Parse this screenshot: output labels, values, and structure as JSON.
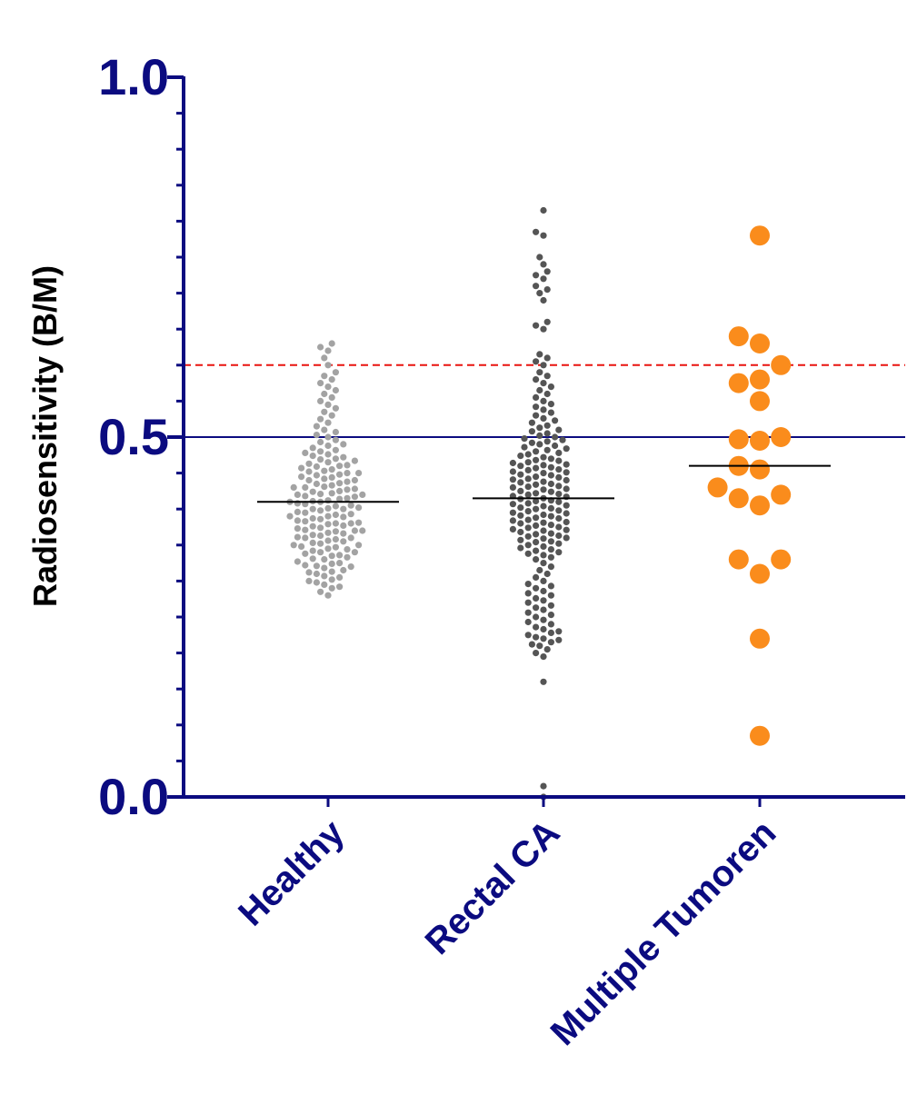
{
  "chart_data": {
    "type": "scatter",
    "subtype": "dot-plot with median lines",
    "ylabel": "Radiosensitivity (B/M)",
    "xlabel": "",
    "ylim": [
      0.0,
      1.0
    ],
    "y_ticks": [
      {
        "value": 0.0,
        "label": "0.0"
      },
      {
        "value": 0.5,
        "label": "0.5"
      },
      {
        "value": 1.0,
        "label": "1.0"
      }
    ],
    "grid": false,
    "legend": "none",
    "reference_lines": [
      {
        "value": 0.5,
        "style": "solid",
        "color": "#0b0b80"
      },
      {
        "value": 0.6,
        "style": "dashed",
        "color": "#e8130f"
      }
    ],
    "categories": [
      "Healthy",
      "Rectal CA",
      "Multiple Tumoren"
    ],
    "series": [
      {
        "category": "Healthy",
        "color": "#a3a3a3",
        "marker": "small",
        "median": 0.41,
        "values": [
          0.28,
          0.285,
          0.29,
          0.292,
          0.295,
          0.298,
          0.3,
          0.302,
          0.305,
          0.307,
          0.31,
          0.312,
          0.313,
          0.315,
          0.318,
          0.32,
          0.321,
          0.322,
          0.324,
          0.325,
          0.327,
          0.33,
          0.331,
          0.333,
          0.335,
          0.336,
          0.338,
          0.34,
          0.34,
          0.342,
          0.344,
          0.345,
          0.347,
          0.348,
          0.35,
          0.35,
          0.352,
          0.353,
          0.355,
          0.356,
          0.358,
          0.36,
          0.36,
          0.361,
          0.363,
          0.364,
          0.366,
          0.367,
          0.369,
          0.37,
          0.37,
          0.371,
          0.373,
          0.374,
          0.376,
          0.377,
          0.379,
          0.38,
          0.38,
          0.381,
          0.383,
          0.384,
          0.386,
          0.387,
          0.389,
          0.39,
          0.39,
          0.392,
          0.393,
          0.395,
          0.396,
          0.398,
          0.4,
          0.4,
          0.401,
          0.402,
          0.404,
          0.405,
          0.407,
          0.408,
          0.41,
          0.41,
          0.411,
          0.412,
          0.414,
          0.415,
          0.417,
          0.418,
          0.42,
          0.42,
          0.421,
          0.422,
          0.424,
          0.425,
          0.427,
          0.428,
          0.43,
          0.43,
          0.431,
          0.433,
          0.435,
          0.436,
          0.438,
          0.44,
          0.44,
          0.442,
          0.444,
          0.445,
          0.447,
          0.448,
          0.45,
          0.45,
          0.452,
          0.453,
          0.455,
          0.457,
          0.459,
          0.46,
          0.461,
          0.463,
          0.465,
          0.467,
          0.469,
          0.47,
          0.472,
          0.474,
          0.476,
          0.478,
          0.48,
          0.482,
          0.485,
          0.488,
          0.49,
          0.493,
          0.496,
          0.5,
          0.503,
          0.507,
          0.51,
          0.515,
          0.52,
          0.525,
          0.53,
          0.535,
          0.54,
          0.545,
          0.55,
          0.555,
          0.56,
          0.565,
          0.57,
          0.575,
          0.58,
          0.585,
          0.59,
          0.6,
          0.61,
          0.62,
          0.625,
          0.63
        ]
      },
      {
        "category": "Rectal CA",
        "color": "#555555",
        "marker": "small",
        "median": 0.415,
        "values": [
          0.0,
          0.015,
          0.16,
          0.195,
          0.2,
          0.205,
          0.21,
          0.212,
          0.215,
          0.218,
          0.22,
          0.222,
          0.225,
          0.228,
          0.23,
          0.233,
          0.236,
          0.24,
          0.243,
          0.246,
          0.25,
          0.253,
          0.256,
          0.26,
          0.263,
          0.266,
          0.27,
          0.273,
          0.276,
          0.28,
          0.283,
          0.286,
          0.29,
          0.293,
          0.296,
          0.3,
          0.305,
          0.31,
          0.315,
          0.32,
          0.325,
          0.33,
          0.333,
          0.336,
          0.338,
          0.34,
          0.342,
          0.344,
          0.346,
          0.348,
          0.35,
          0.352,
          0.354,
          0.355,
          0.357,
          0.359,
          0.36,
          0.362,
          0.363,
          0.365,
          0.366,
          0.368,
          0.37,
          0.371,
          0.372,
          0.374,
          0.375,
          0.377,
          0.378,
          0.38,
          0.381,
          0.382,
          0.384,
          0.385,
          0.387,
          0.388,
          0.39,
          0.391,
          0.392,
          0.394,
          0.395,
          0.397,
          0.398,
          0.4,
          0.401,
          0.402,
          0.404,
          0.405,
          0.407,
          0.408,
          0.41,
          0.411,
          0.412,
          0.414,
          0.415,
          0.417,
          0.418,
          0.42,
          0.421,
          0.422,
          0.424,
          0.425,
          0.427,
          0.428,
          0.43,
          0.431,
          0.432,
          0.434,
          0.435,
          0.437,
          0.438,
          0.44,
          0.441,
          0.442,
          0.444,
          0.445,
          0.447,
          0.448,
          0.45,
          0.451,
          0.452,
          0.454,
          0.455,
          0.457,
          0.458,
          0.46,
          0.461,
          0.462,
          0.464,
          0.465,
          0.467,
          0.468,
          0.47,
          0.472,
          0.474,
          0.476,
          0.478,
          0.48,
          0.482,
          0.484,
          0.486,
          0.488,
          0.49,
          0.492,
          0.494,
          0.496,
          0.498,
          0.5,
          0.502,
          0.505,
          0.508,
          0.51,
          0.513,
          0.516,
          0.52,
          0.523,
          0.526,
          0.53,
          0.534,
          0.538,
          0.542,
          0.546,
          0.55,
          0.555,
          0.56,
          0.565,
          0.57,
          0.575,
          0.58,
          0.585,
          0.59,
          0.6,
          0.605,
          0.61,
          0.615,
          0.65,
          0.655,
          0.66,
          0.69,
          0.7,
          0.705,
          0.71,
          0.72,
          0.725,
          0.73,
          0.74,
          0.75,
          0.78,
          0.785,
          0.815
        ]
      },
      {
        "category": "Multiple Tumoren",
        "color": "#fa8c1c",
        "marker": "large",
        "median": 0.46,
        "values": [
          0.78,
          0.64,
          0.63,
          0.6,
          0.58,
          0.575,
          0.55,
          0.5,
          0.497,
          0.495,
          0.46,
          0.455,
          0.43,
          0.42,
          0.415,
          0.405,
          0.33,
          0.33,
          0.31,
          0.22,
          0.085
        ]
      }
    ]
  }
}
